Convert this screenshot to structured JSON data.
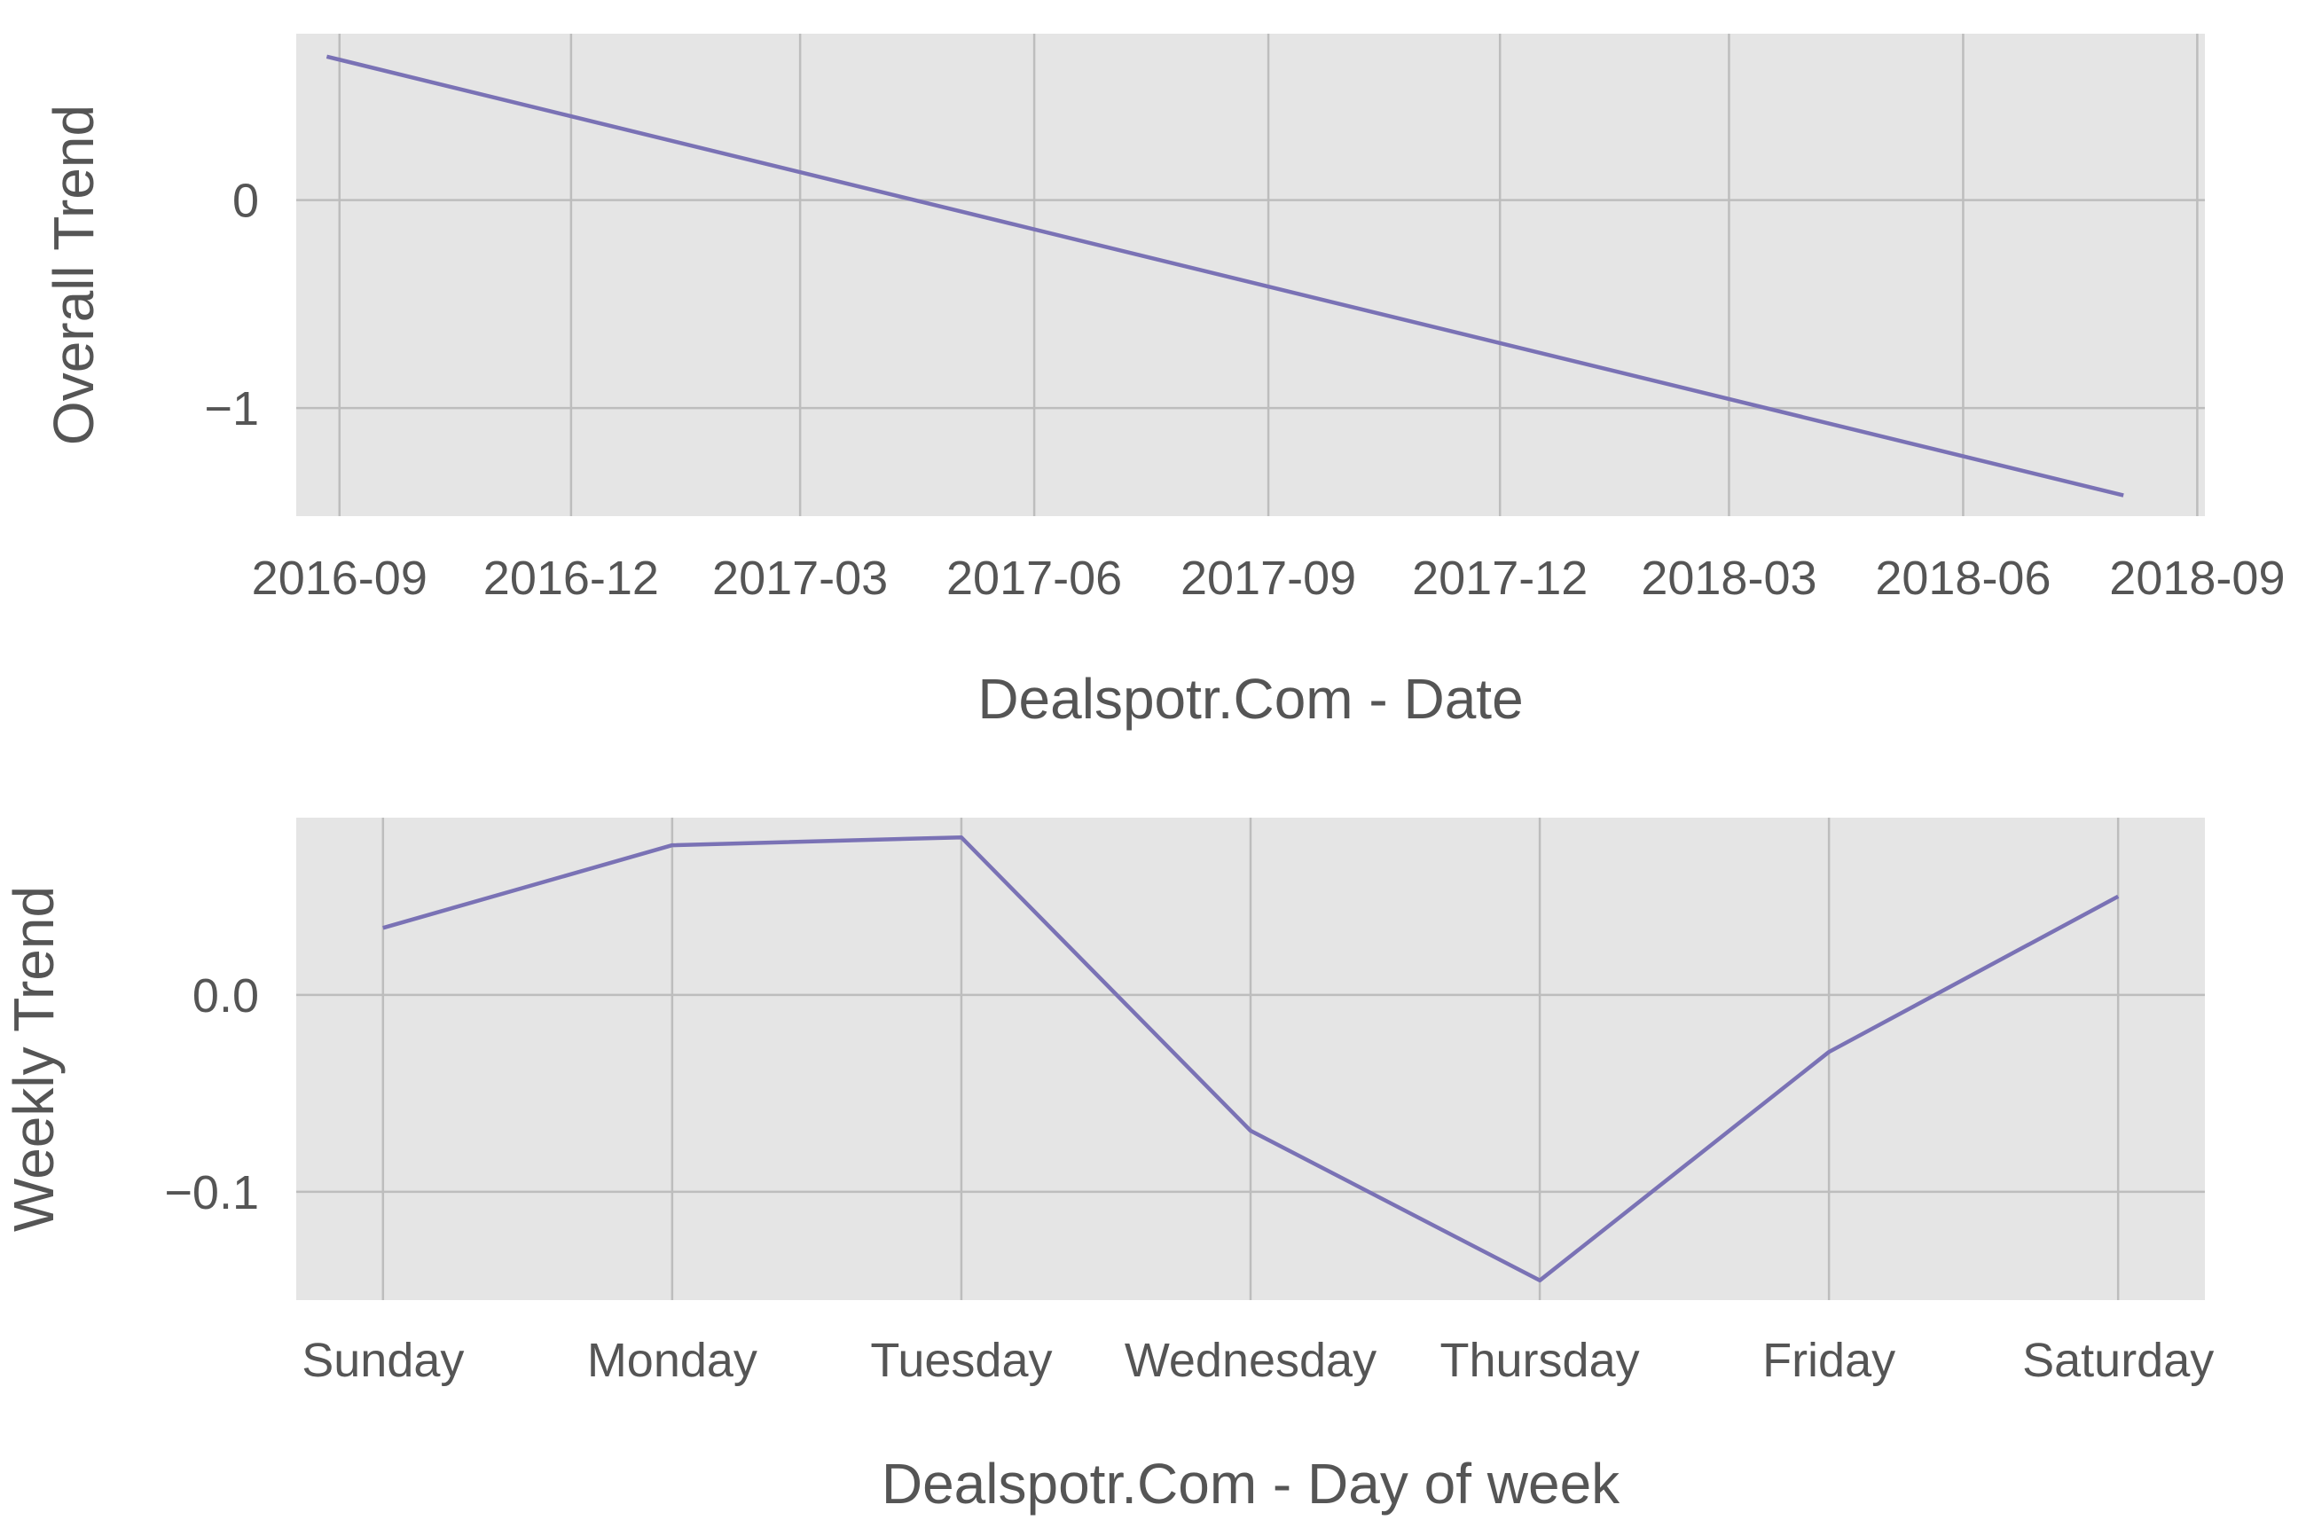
{
  "chart_data": [
    {
      "type": "line",
      "xlabel": "Dealspotr.Com - Date",
      "ylabel": "Overall Trend",
      "x_type": "date",
      "xlim": [
        "2016-08-15",
        "2018-09-04"
      ],
      "ylim": [
        -1.52,
        0.8
      ],
      "x_ticks": [
        "2016-09-01",
        "2016-12-01",
        "2017-03-01",
        "2017-06-01",
        "2017-09-01",
        "2017-12-01",
        "2018-03-01",
        "2018-06-01",
        "2018-09-01"
      ],
      "x_tick_labels": [
        "2016-09",
        "2016-12",
        "2017-03",
        "2017-06",
        "2017-09",
        "2017-12",
        "2018-03",
        "2018-06",
        "2018-09"
      ],
      "y_ticks": [
        0,
        -1
      ],
      "y_tick_labels": [
        "0",
        "−1"
      ],
      "grid": true,
      "series": [
        {
          "x": [
            "2016-08-27",
            "2018-08-03"
          ],
          "values": [
            0.69,
            -1.42
          ],
          "color": "#7a72b5"
        }
      ]
    },
    {
      "type": "line",
      "xlabel": "Dealspotr.Com - Day of week",
      "ylabel": "Weekly Trend",
      "categories": [
        "Sunday",
        "Monday",
        "Tuesday",
        "Wednesday",
        "Thursday",
        "Friday",
        "Saturday"
      ],
      "ylim": [
        -0.155,
        0.09
      ],
      "y_ticks": [
        0.0,
        -0.1
      ],
      "y_tick_labels": [
        "0.0",
        "−0.1"
      ],
      "grid": true,
      "series": [
        {
          "values": [
            0.034,
            0.076,
            0.08,
            -0.069,
            -0.145,
            -0.029,
            0.05
          ],
          "color": "#7a72b5"
        }
      ]
    }
  ]
}
